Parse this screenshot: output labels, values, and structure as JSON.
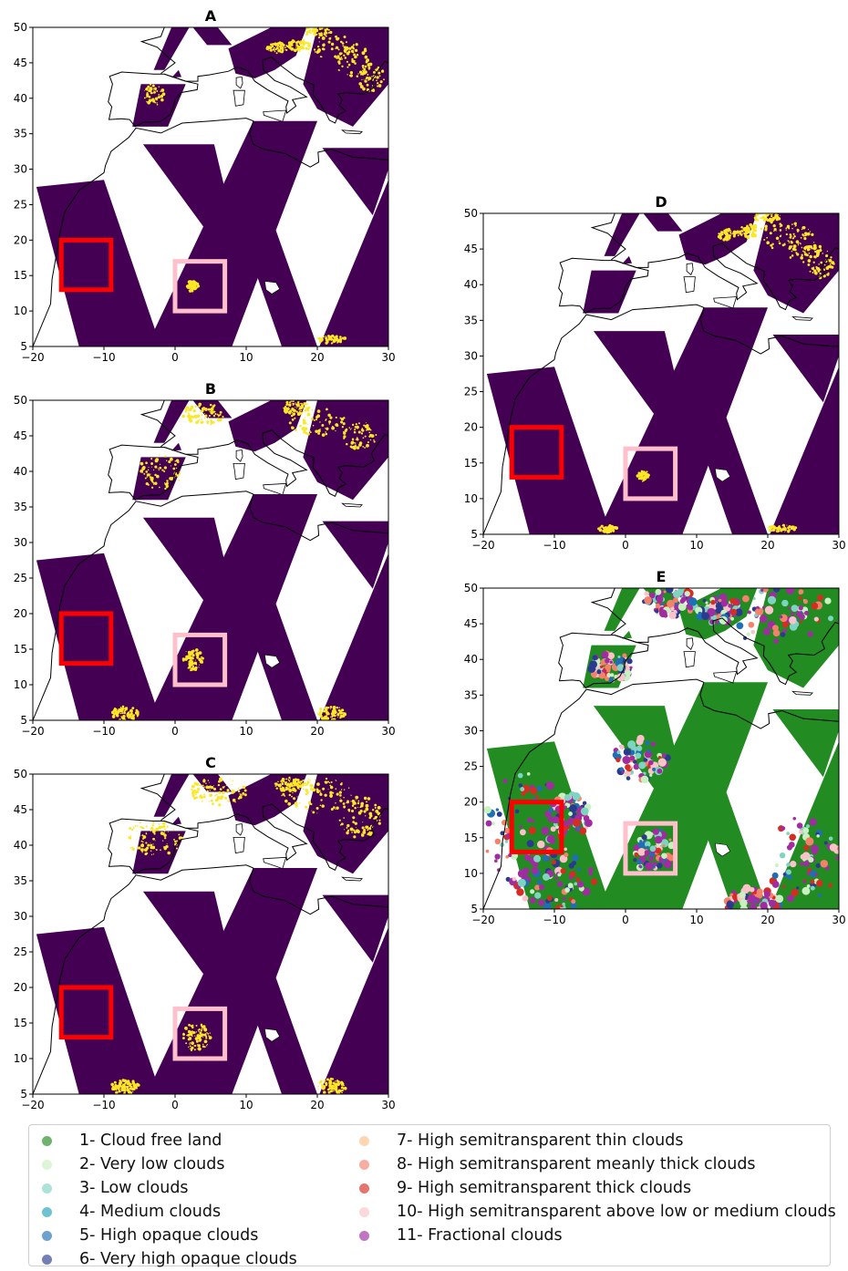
{
  "chart_data": [
    {
      "type": "heatmap",
      "title": "A",
      "xlim": [
        -20,
        30
      ],
      "ylim": [
        5,
        50
      ],
      "xticks": [
        "−20",
        "−10",
        "0",
        "10",
        "20",
        "30"
      ],
      "yticks": [
        "5",
        "10",
        "15",
        "20",
        "25",
        "30",
        "35",
        "40",
        "45",
        "50"
      ],
      "binary_colors": {
        "clear": "#440154",
        "cloud": "#fde725"
      },
      "boxes": [
        {
          "color": "#ff0000",
          "lon": [
            -16,
            -9
          ],
          "lat": [
            13,
            20
          ]
        },
        {
          "color": "#ffc0cb",
          "lon": [
            0,
            7
          ],
          "lat": [
            10,
            17
          ]
        }
      ]
    },
    {
      "type": "heatmap",
      "title": "B",
      "xlim": [
        -20,
        30
      ],
      "ylim": [
        5,
        50
      ],
      "xticks": [
        "−20",
        "−10",
        "0",
        "10",
        "20",
        "30"
      ],
      "yticks": [
        "5",
        "10",
        "15",
        "20",
        "25",
        "30",
        "35",
        "40",
        "45",
        "50"
      ],
      "binary_colors": {
        "clear": "#440154",
        "cloud": "#fde725"
      },
      "boxes": [
        {
          "color": "#ff0000",
          "lon": [
            -16,
            -9
          ],
          "lat": [
            13,
            20
          ]
        },
        {
          "color": "#ffc0cb",
          "lon": [
            0,
            7
          ],
          "lat": [
            10,
            17
          ]
        }
      ]
    },
    {
      "type": "heatmap",
      "title": "C",
      "xlim": [
        -20,
        30
      ],
      "ylim": [
        5,
        50
      ],
      "xticks": [
        "−20",
        "−10",
        "0",
        "10",
        "20",
        "30"
      ],
      "yticks": [
        "5",
        "10",
        "15",
        "20",
        "25",
        "30",
        "35",
        "40",
        "45",
        "50"
      ],
      "binary_colors": {
        "clear": "#440154",
        "cloud": "#fde725"
      },
      "boxes": [
        {
          "color": "#ff0000",
          "lon": [
            -16,
            -9
          ],
          "lat": [
            13,
            20
          ]
        },
        {
          "color": "#ffc0cb",
          "lon": [
            0,
            7
          ],
          "lat": [
            10,
            17
          ]
        }
      ]
    },
    {
      "type": "heatmap",
      "title": "D",
      "xlim": [
        -20,
        30
      ],
      "ylim": [
        5,
        50
      ],
      "xticks": [
        "−20",
        "−10",
        "0",
        "10",
        "20",
        "30"
      ],
      "yticks": [
        "5",
        "10",
        "15",
        "20",
        "25",
        "30",
        "35",
        "40",
        "45",
        "50"
      ],
      "binary_colors": {
        "clear": "#440154",
        "cloud": "#fde725"
      },
      "boxes": [
        {
          "color": "#ff0000",
          "lon": [
            -16,
            -9
          ],
          "lat": [
            13,
            20
          ]
        },
        {
          "color": "#ffc0cb",
          "lon": [
            0,
            7
          ],
          "lat": [
            10,
            17
          ]
        }
      ]
    },
    {
      "type": "heatmap",
      "title": "E",
      "xlim": [
        -20,
        30
      ],
      "ylim": [
        5,
        50
      ],
      "xticks": [
        "−20",
        "−10",
        "0",
        "10",
        "20",
        "30"
      ],
      "yticks": [
        "5",
        "10",
        "15",
        "20",
        "25",
        "30",
        "35",
        "40",
        "45",
        "50"
      ],
      "boxes": [
        {
          "color": "#ff0000",
          "lon": [
            -16,
            -9
          ],
          "lat": [
            13,
            20
          ]
        },
        {
          "color": "#ffc0cb",
          "lon": [
            0,
            7
          ],
          "lat": [
            10,
            17
          ]
        }
      ]
    }
  ],
  "legend": {
    "items": [
      {
        "label": "1- Cloud free land",
        "color": "#228b22"
      },
      {
        "label": "2- Very low clouds",
        "color": "#c8f0c0"
      },
      {
        "label": "3- Low clouds",
        "color": "#7fd4c1"
      },
      {
        "label": "4- Medium clouds",
        "color": "#1fa3b8"
      },
      {
        "label": "5- High opaque clouds",
        "color": "#1f6fb4"
      },
      {
        "label": "6- Very high opaque clouds",
        "color": "#2a3a8f"
      },
      {
        "label": "7- High semitransparent thin clouds",
        "color": "#fdc08c"
      },
      {
        "label": "8- High semitransparent meanly thick clouds",
        "color": "#f4826a"
      },
      {
        "label": "9- High semitransparent thick clouds",
        "color": "#d62d20"
      },
      {
        "label": "10- High semitransparent above low or medium clouds",
        "color": "#fbc2c9"
      },
      {
        "label": "11- Fractional clouds",
        "color": "#a02ca0"
      }
    ]
  }
}
